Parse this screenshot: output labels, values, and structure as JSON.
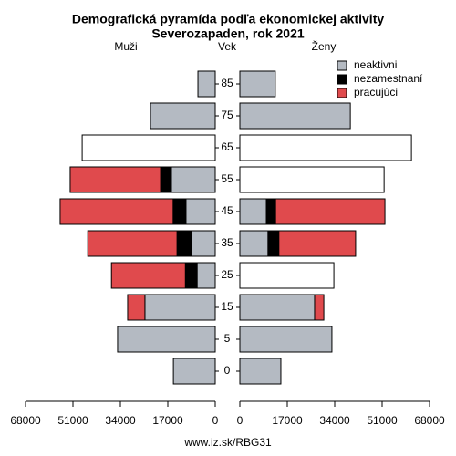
{
  "chart_data": {
    "type": "pyramid",
    "title": "Demografická pyramída podľa ekonomickej aktivity",
    "subtitle": "Severozapaden, rok 2021",
    "y_label": "Vek",
    "left_label": "Muži",
    "right_label": "Ženy",
    "source": "www.iz.sk/RBG31",
    "categories": [
      0,
      5,
      15,
      25,
      35,
      45,
      55,
      65,
      75,
      85
    ],
    "xlim": [
      0,
      68000
    ],
    "xticks": [
      68000,
      51000,
      34000,
      17000,
      0
    ],
    "series": [
      {
        "name": "neaktivni",
        "color": "#b4bac2",
        "left": [
          15000,
          35000,
          25200,
          6500,
          8500,
          10500,
          15700,
          null,
          23200,
          6200
        ],
        "right": [
          14700,
          33000,
          26800,
          null,
          10100,
          9500,
          null,
          null,
          39600,
          12700
        ]
      },
      {
        "name": "nezamestnaní",
        "color": "#000000",
        "left": [
          null,
          null,
          0,
          4200,
          5200,
          4600,
          3900,
          null,
          null,
          null
        ],
        "right": [
          null,
          null,
          0,
          null,
          3900,
          3300,
          null,
          null,
          null,
          null
        ]
      },
      {
        "name": "pracujúci",
        "color": "#e04a4d",
        "left": [
          null,
          null,
          6200,
          26500,
          32000,
          40500,
          32400,
          null,
          null,
          null
        ],
        "right": [
          null,
          null,
          3300,
          null,
          27500,
          39200,
          null,
          null,
          null,
          null
        ]
      }
    ],
    "no_breakdown": {
      "color": "#ffffff",
      "left": [
        null,
        null,
        null,
        null,
        null,
        null,
        null,
        47700,
        null,
        null
      ],
      "right": [
        null,
        null,
        null,
        33700,
        null,
        null,
        51700,
        61500,
        null,
        null
      ]
    }
  }
}
